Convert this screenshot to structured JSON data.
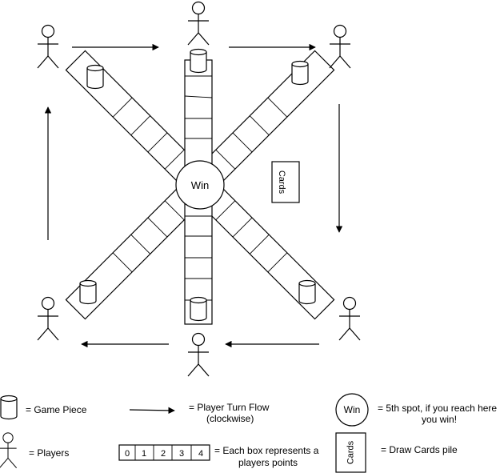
{
  "center_label": "Win",
  "cards_label": "Cards",
  "legend": {
    "game_piece": "= Game Piece",
    "turn_flow": "= Player Turn Flow",
    "turn_flow_note": "(clockwise)",
    "win_symbol": "Win",
    "win_text_1": "= 5th spot, if you reach here",
    "win_text_2": "you win!",
    "players": "= Players",
    "points_boxes": [
      "0",
      "1",
      "2",
      "3",
      "4"
    ],
    "points_text_1": "= Each box represents a",
    "points_text_2": "players points",
    "cards_symbol": "Cards",
    "cards_text": "= Draw Cards pile"
  }
}
